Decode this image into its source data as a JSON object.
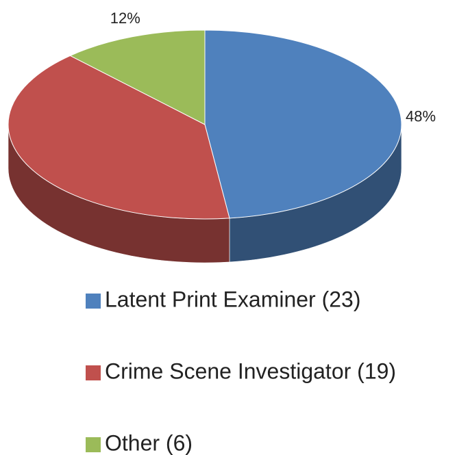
{
  "chart_data": {
    "type": "pie",
    "categories": [
      "Latent Print Examiner (23)",
      "Crime Scene Investigator (19)",
      "Other (6)"
    ],
    "values": [
      48,
      40,
      12
    ],
    "value_labels": [
      "48%",
      null,
      "12%"
    ],
    "colors": [
      "#4f81bd",
      "#c0504d",
      "#9bbb59"
    ],
    "legend": "bottom"
  }
}
